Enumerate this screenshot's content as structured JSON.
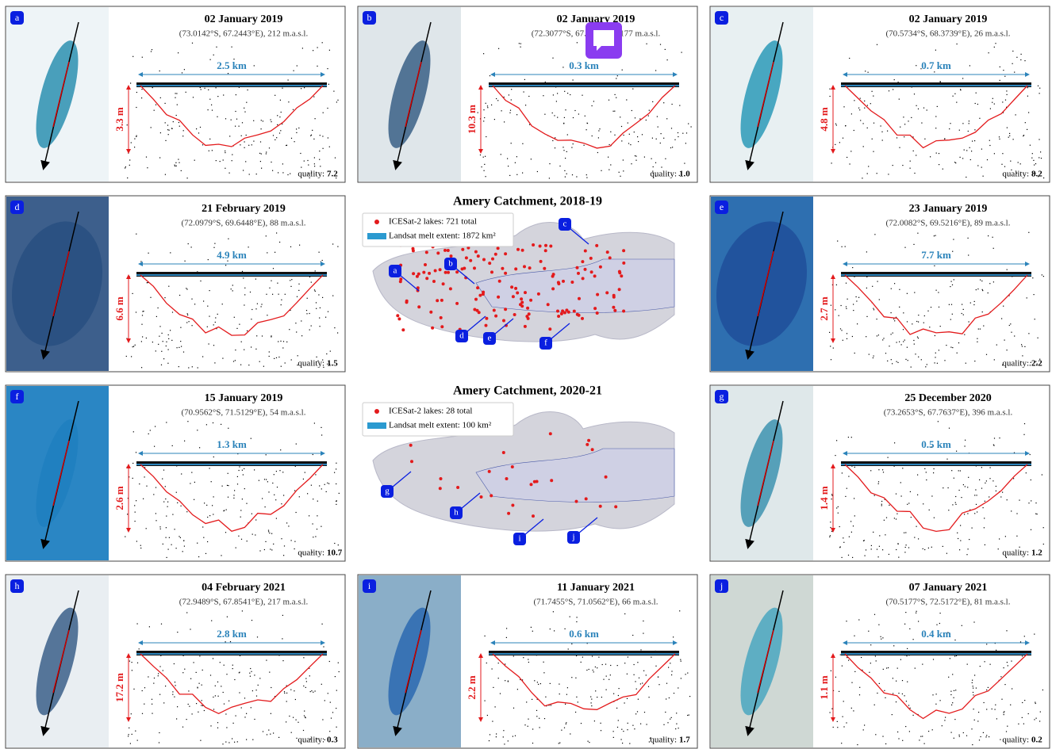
{
  "panels": [
    {
      "label": "a",
      "date": "02 January 2019",
      "location": "(73.0142°S, 67.2443°E), 212 m.a.s.l.",
      "width": "2.5 km",
      "depth": "3.3 m",
      "quality_label": "quality:",
      "quality": "7.2"
    },
    {
      "label": "b",
      "date": "02 January 2019",
      "location": "(72.3077°S, 67.5727°E), 177 m.a.s.l.",
      "width": "0.3 km",
      "depth": "10.3 m",
      "quality_label": "quality:",
      "quality": "1.0"
    },
    {
      "label": "c",
      "date": "02 January 2019",
      "location": "(70.5734°S, 68.3739°E), 26 m.a.s.l.",
      "width": "0.7 km",
      "depth": "4.8 m",
      "quality_label": "quality:",
      "quality": "8.2"
    },
    {
      "label": "d",
      "date": "21 February 2019",
      "location": "(72.0979°S, 69.6448°E), 88 m.a.s.l.",
      "width": "4.9 km",
      "depth": "6.6 m",
      "quality_label": "quality:",
      "quality": "1.5"
    },
    {
      "label": "e",
      "date": "23 January 2019",
      "location": "(72.0082°S, 69.5216°E), 89 m.a.s.l.",
      "width": "7.7 km",
      "depth": "2.7 m",
      "quality_label": "quality:",
      "quality": "2.2"
    },
    {
      "label": "f",
      "date": "15 January 2019",
      "location": "(70.9562°S, 71.5129°E), 54 m.a.s.l.",
      "width": "1.3 km",
      "depth": "2.6 m",
      "quality_label": "quality:",
      "quality": "10.7"
    },
    {
      "label": "g",
      "date": "25 December 2020",
      "location": "(73.2653°S, 67.7637°E), 396 m.a.s.l.",
      "width": "0.5 km",
      "depth": "1.4 m",
      "quality_label": "quality:",
      "quality": "1.2"
    },
    {
      "label": "h",
      "date": "04 February 2021",
      "location": "(72.9489°S, 67.8541°E), 217 m.a.s.l.",
      "width": "2.8 km",
      "depth": "17.2 m",
      "quality_label": "quality:",
      "quality": "0.3"
    },
    {
      "label": "i",
      "date": "11 January 2021",
      "location": "(71.7455°S, 71.0562°E), 66 m.a.s.l.",
      "width": "0.6 km",
      "depth": "2.2 m",
      "quality_label": "quality:",
      "quality": "1.7"
    },
    {
      "label": "j",
      "date": "07 January 2021",
      "location": "(70.5177°S, 72.5172°E), 81 m.a.s.l.",
      "width": "0.4 km",
      "depth": "1.1 m",
      "quality_label": "quality:",
      "quality": "0.2"
    }
  ],
  "maps": [
    {
      "title": "Amery Catchment, 2018-19",
      "legend_lakes": "ICESat-2 lakes: 721 total",
      "legend_melt": "Landsat melt extent: 1872 km²",
      "callouts": [
        "a",
        "b",
        "c",
        "d",
        "e",
        "f"
      ]
    },
    {
      "title": "Amery Catchment, 2020-21",
      "legend_lakes": "ICESat-2 lakes: 28 total",
      "legend_melt": "Landsat melt extent: 100 km²",
      "callouts": [
        "g",
        "h",
        "i",
        "j"
      ]
    }
  ]
}
